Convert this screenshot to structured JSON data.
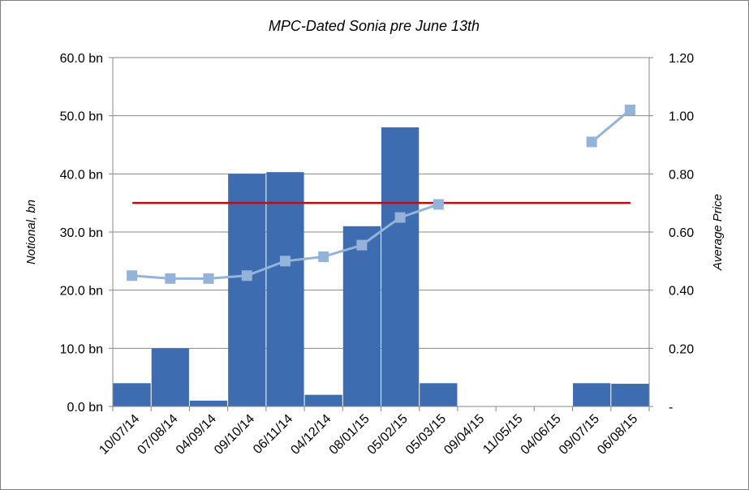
{
  "chart_data": {
    "type": "bar",
    "title": "MPC-Dated Sonia pre June 13th",
    "ylabel": "Notional, bn",
    "y2label": "Average Price",
    "categories": [
      "10/07/14",
      "07/08/14",
      "04/09/14",
      "09/10/14",
      "06/11/14",
      "04/12/14",
      "08/01/15",
      "05/02/15",
      "05/03/15",
      "09/04/15",
      "11/05/15",
      "04/06/15",
      "09/07/15",
      "06/08/15"
    ],
    "ylim": [
      0,
      60
    ],
    "y2lim": [
      0,
      1.2
    ],
    "yticks": [
      "0.0 bn",
      "10.0 bn",
      "20.0 bn",
      "30.0 bn",
      "40.0 bn",
      "50.0 bn",
      "60.0 bn"
    ],
    "y2ticks": [
      "-",
      "0.20",
      "0.40",
      "0.60",
      "0.80",
      "1.00",
      "1.20"
    ],
    "grid": true,
    "bar_series": {
      "color": "#3d6cb0",
      "values": [
        4,
        10,
        1,
        40,
        40.3,
        2,
        31,
        48,
        4,
        0,
        0,
        0,
        4,
        3.9
      ]
    },
    "line_series": {
      "axis": "secondary",
      "color": "#94b3d9",
      "values": [
        0.45,
        0.44,
        0.44,
        0.45,
        0.5,
        0.515,
        0.555,
        0.65,
        0.695,
        null,
        null,
        null,
        0.91,
        1.02
      ]
    },
    "reference_line": {
      "axis": "secondary",
      "color": "#e00000",
      "value": 0.7,
      "from_index": 0,
      "to_index": 13
    }
  }
}
